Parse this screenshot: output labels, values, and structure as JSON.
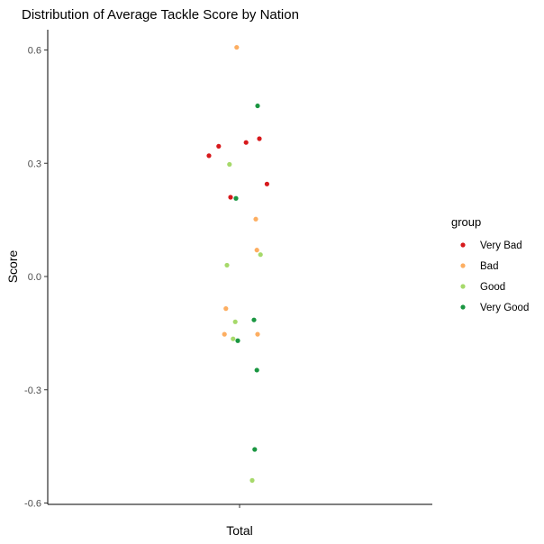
{
  "chart_data": {
    "type": "scatter",
    "title": "Distribution of Average Tackle Score by Nation",
    "xlabel": "",
    "ylabel": "Score",
    "x_category": "Total",
    "ylim": [
      -0.6,
      0.6
    ],
    "y_ticks": [
      {
        "value": -0.6,
        "label": "-0.6"
      },
      {
        "value": -0.3,
        "label": "-0.3"
      },
      {
        "value": 0.0,
        "label": "0.0"
      },
      {
        "value": 0.3,
        "label": "0.3"
      },
      {
        "value": 0.6,
        "label": "0.6"
      }
    ],
    "grid": false,
    "legend": {
      "title": "group",
      "position": "right",
      "entries": [
        {
          "label": "Very Bad",
          "color": "#d7191c"
        },
        {
          "label": "Bad",
          "color": "#fdae61"
        },
        {
          "label": "Good",
          "color": "#a6d96a"
        },
        {
          "label": "Very Good",
          "color": "#1a9641"
        }
      ]
    },
    "series": [
      {
        "name": "Very Bad",
        "color": "#d7191c",
        "points": [
          {
            "jitter": -0.085,
            "y": 0.32
          },
          {
            "jitter": -0.058,
            "y": 0.345
          },
          {
            "jitter": 0.018,
            "y": 0.355
          },
          {
            "jitter": 0.055,
            "y": 0.365
          },
          {
            "jitter": 0.076,
            "y": 0.245
          },
          {
            "jitter": -0.025,
            "y": 0.21
          }
        ]
      },
      {
        "name": "Bad",
        "color": "#fdae61",
        "points": [
          {
            "jitter": -0.008,
            "y": 0.607
          },
          {
            "jitter": 0.045,
            "y": 0.152
          },
          {
            "jitter": 0.048,
            "y": 0.07
          },
          {
            "jitter": -0.038,
            "y": -0.085
          },
          {
            "jitter": -0.042,
            "y": -0.153
          },
          {
            "jitter": 0.05,
            "y": -0.153
          }
        ]
      },
      {
        "name": "Good",
        "color": "#a6d96a",
        "points": [
          {
            "jitter": -0.028,
            "y": 0.297
          },
          {
            "jitter": 0.058,
            "y": 0.058
          },
          {
            "jitter": -0.035,
            "y": 0.03
          },
          {
            "jitter": -0.012,
            "y": -0.12
          },
          {
            "jitter": -0.018,
            "y": -0.165
          },
          {
            "jitter": 0.035,
            "y": -0.54
          }
        ]
      },
      {
        "name": "Very Good",
        "color": "#1a9641",
        "points": [
          {
            "jitter": 0.05,
            "y": 0.452
          },
          {
            "jitter": -0.01,
            "y": 0.207
          },
          {
            "jitter": 0.04,
            "y": -0.115
          },
          {
            "jitter": -0.005,
            "y": -0.17
          },
          {
            "jitter": 0.048,
            "y": -0.248
          },
          {
            "jitter": 0.042,
            "y": -0.458
          }
        ]
      }
    ]
  }
}
